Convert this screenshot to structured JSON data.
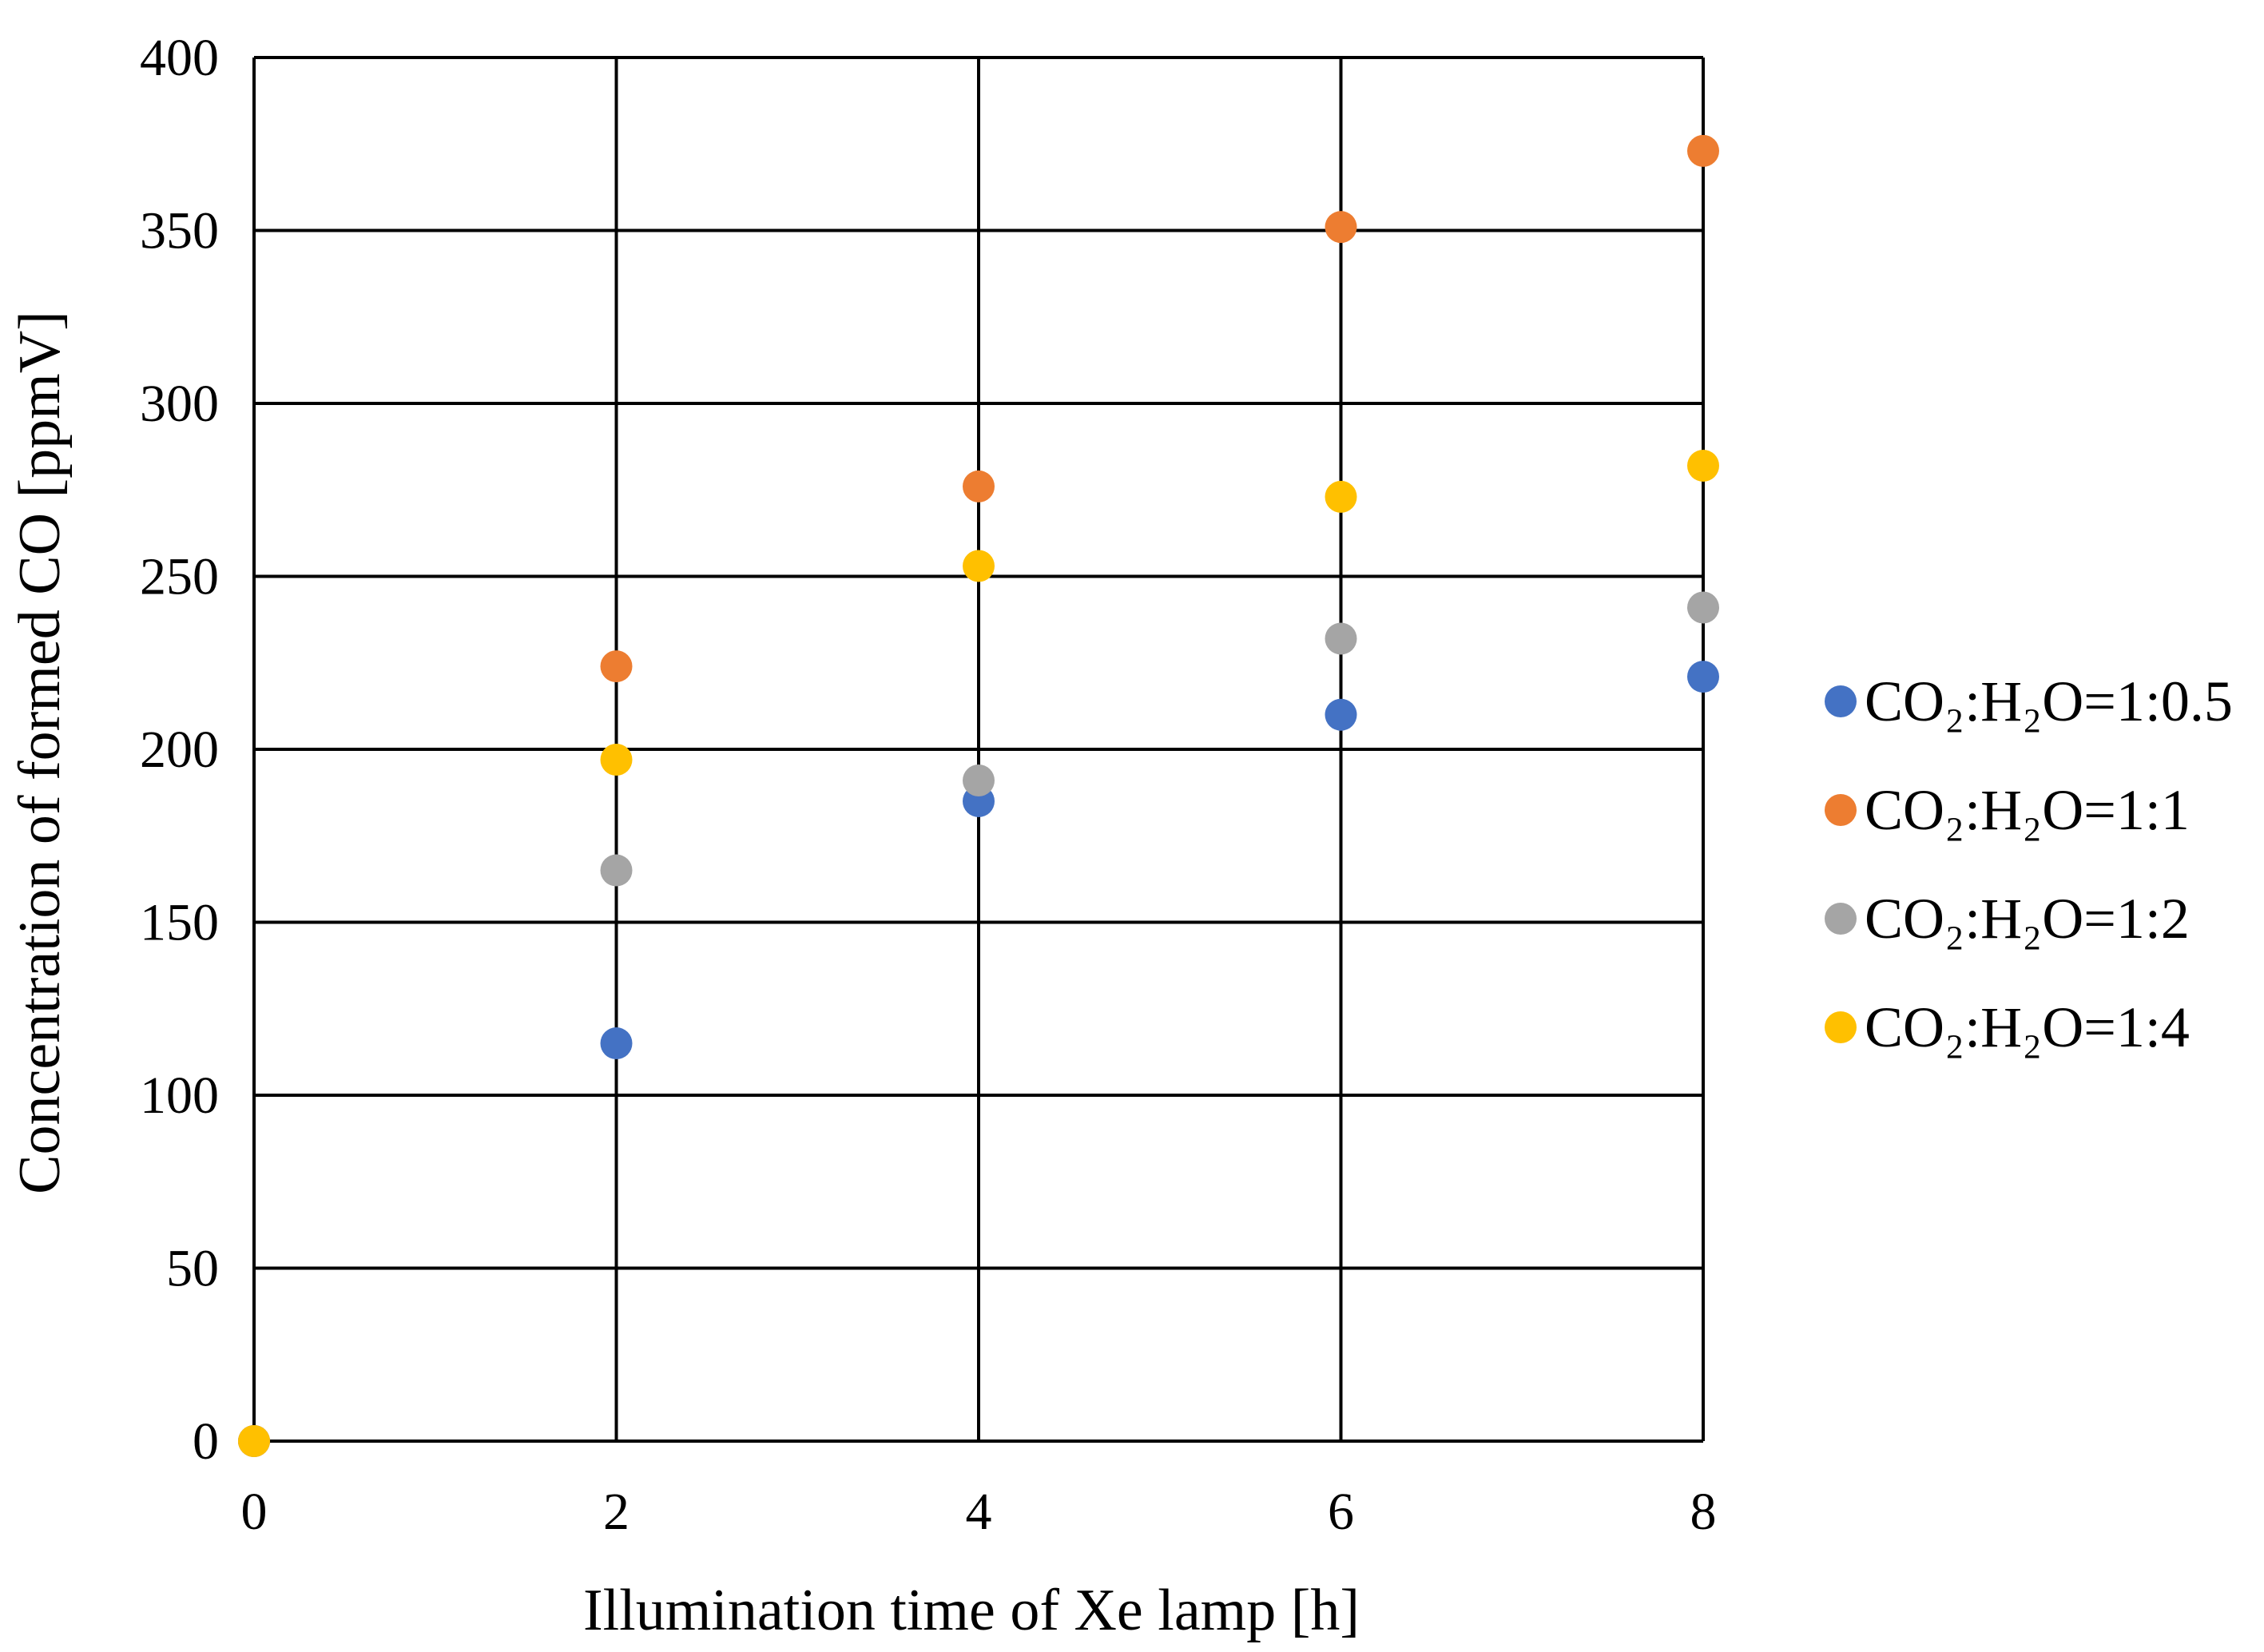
{
  "chart_data": {
    "type": "scatter",
    "title": "",
    "xlabel": "Illumination  time  of Xe lamp  [h]",
    "ylabel": "Concentration of formed CO  [ppmV]",
    "xlim": [
      0,
      8
    ],
    "ylim": [
      0,
      400
    ],
    "xticks": [
      0,
      2,
      4,
      6,
      8
    ],
    "yticks": [
      0,
      50,
      100,
      150,
      200,
      250,
      300,
      350,
      400
    ],
    "xtick_labels": [
      "0",
      "2",
      "4",
      "6",
      "8"
    ],
    "ytick_labels": [
      "0",
      "50",
      "100",
      "150",
      "200",
      "250",
      "300",
      "350",
      "400"
    ],
    "grid": true,
    "legend_position": "right",
    "series": [
      {
        "name": "CO₂:H₂O=1:0.5",
        "color": "#4472C4",
        "x": [
          0,
          2,
          4,
          6,
          8
        ],
        "y": [
          0,
          115,
          185,
          210,
          221
        ]
      },
      {
        "name": "CO₂:H₂O=1:1",
        "color": "#ED7D31",
        "x": [
          0,
          2,
          4,
          6,
          8
        ],
        "y": [
          0,
          224,
          276,
          351,
          373
        ]
      },
      {
        "name": "CO₂:H₂O=1:2",
        "color": "#A5A5A5",
        "x": [
          0,
          2,
          4,
          6,
          8
        ],
        "y": [
          0,
          165,
          191,
          232,
          241
        ]
      },
      {
        "name": "CO₂:H₂O=1:4",
        "color": "#FFC000",
        "x": [
          0,
          2,
          4,
          6,
          8
        ],
        "y": [
          0,
          197,
          253,
          273,
          282
        ]
      }
    ]
  }
}
